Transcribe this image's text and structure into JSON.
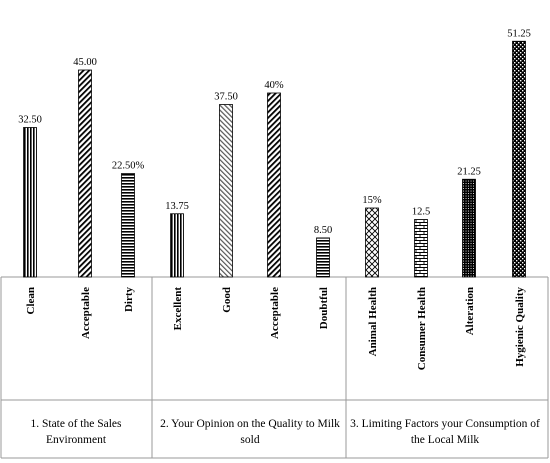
{
  "chart_data": {
    "type": "bar",
    "title": "",
    "xlabel": "",
    "ylabel": "",
    "ylim": [
      0,
      55
    ],
    "grid": false,
    "legend": "none",
    "groups": [
      {
        "name_lines": [
          "1. State of the Sales",
          "Environment"
        ],
        "bars": [
          {
            "category": "Clean",
            "value": 32.5,
            "label": "32.50",
            "pattern": "vstripes"
          },
          {
            "category": "Acceptable",
            "value": 45.0,
            "label": "45.00",
            "pattern": "diag-back"
          },
          {
            "category": "Dirty",
            "value": 22.5,
            "label": "22.50%",
            "pattern": "hstripes"
          }
        ]
      },
      {
        "name_lines": [
          "2. Your Opinion on the Quality to Milk",
          "sold"
        ],
        "bars": [
          {
            "category": "Excellent",
            "value": 13.75,
            "label": "13.75",
            "pattern": "vstripes"
          },
          {
            "category": "Good",
            "value": 37.5,
            "label": "37.50",
            "pattern": "diag-light"
          },
          {
            "category": "Acceptable",
            "value": 40.0,
            "label": "40%",
            "pattern": "diag-back"
          },
          {
            "category": "Doubtful",
            "value": 8.5,
            "label": "8.50",
            "pattern": "hstripes"
          }
        ]
      },
      {
        "name_lines": [
          "3. Limiting Factors your Consumption of",
          "the Local Milk"
        ],
        "bars": [
          {
            "category": "Animal Health",
            "value": 15.0,
            "label": "15%",
            "pattern": "cross"
          },
          {
            "category": "Consumer Health",
            "value": 12.5,
            "label": "12.5",
            "pattern": "brick"
          },
          {
            "category": "Alteration",
            "value": 21.25,
            "label": "21.25",
            "pattern": "dots"
          },
          {
            "category": "Hygienic Quality",
            "value": 51.25,
            "label": "51.25",
            "pattern": "checker"
          }
        ]
      }
    ]
  }
}
